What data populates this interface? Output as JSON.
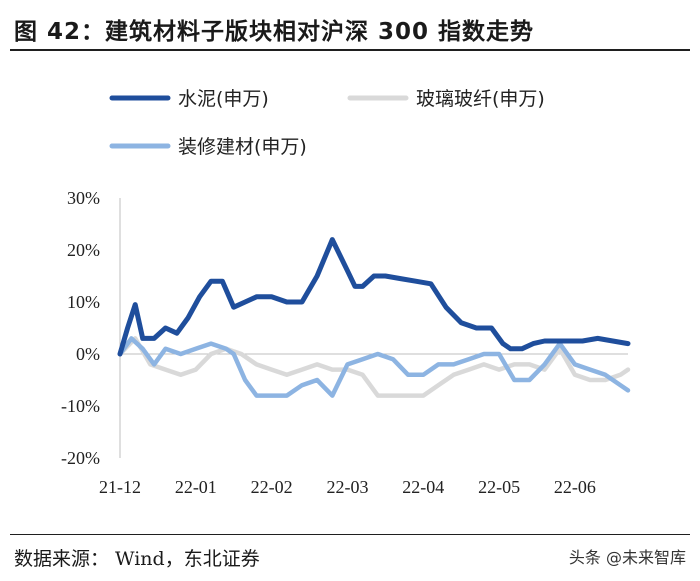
{
  "title": "图 42：建筑材料子版块相对沪深 300 指数走势",
  "source": "数据来源：  Wind，东北证券",
  "watermark": "头条 @未来智库",
  "chart_data": {
    "type": "line",
    "title": "建筑材料子版块相对沪深 300 指数走势",
    "xlabel": "",
    "ylabel": "",
    "ylim": [
      -20,
      30
    ],
    "yticks": [
      30,
      20,
      10,
      0,
      -10,
      -20
    ],
    "ytick_labels": [
      "30%",
      "20%",
      "10%",
      "0%",
      "-10%",
      "-20%"
    ],
    "x_range": [
      0,
      6.7
    ],
    "xticks": [
      0,
      1,
      2,
      3,
      4,
      5,
      6
    ],
    "xtick_labels": [
      "21-12",
      "22-01",
      "22-02",
      "22-03",
      "22-04",
      "22-05",
      "22-06"
    ],
    "grid": false,
    "legend_position": "top",
    "series": [
      {
        "name": "水泥(申万)",
        "color": "#1f4e9c",
        "x": [
          0,
          0.1,
          0.2,
          0.3,
          0.45,
          0.6,
          0.75,
          0.9,
          1.05,
          1.2,
          1.35,
          1.5,
          1.65,
          1.8,
          2.0,
          2.2,
          2.4,
          2.6,
          2.8,
          3.0,
          3.1,
          3.2,
          3.35,
          3.5,
          3.7,
          3.9,
          4.1,
          4.3,
          4.5,
          4.7,
          4.9,
          5.05,
          5.15,
          5.3,
          5.45,
          5.6,
          5.75,
          5.9,
          6.1,
          6.3,
          6.5,
          6.7
        ],
        "values": [
          0,
          5,
          9.5,
          3,
          3,
          5,
          4,
          7,
          11,
          14,
          14,
          9,
          10,
          11,
          11,
          10,
          10,
          15,
          22,
          16,
          13,
          13,
          15,
          15,
          14.5,
          14,
          13.5,
          9,
          6,
          5,
          5,
          2,
          1,
          1,
          2,
          2.5,
          2.5,
          2.5,
          2.5,
          3,
          2.5,
          2
        ]
      },
      {
        "name": "玻璃玻纤(申万)",
        "color": "#d9d9d9",
        "x": [
          0,
          0.2,
          0.4,
          0.6,
          0.8,
          1.0,
          1.2,
          1.4,
          1.6,
          1.8,
          2.0,
          2.2,
          2.4,
          2.6,
          2.8,
          3.0,
          3.2,
          3.4,
          3.6,
          3.8,
          4.0,
          4.2,
          4.4,
          4.6,
          4.8,
          5.0,
          5.2,
          5.4,
          5.6,
          5.8,
          6.0,
          6.2,
          6.4,
          6.6,
          6.7
        ],
        "values": [
          0,
          3,
          -2,
          -3,
          -4,
          -3,
          0,
          1,
          0,
          -2,
          -3,
          -4,
          -3,
          -2,
          -3,
          -3,
          -4,
          -8,
          -8,
          -8,
          -8,
          -6,
          -4,
          -3,
          -2,
          -3,
          -2,
          -2,
          -3,
          1,
          -4,
          -5,
          -5,
          -4,
          -3
        ]
      },
      {
        "name": "装修建材(申万)",
        "color": "#8db4e2",
        "x": [
          0,
          0.15,
          0.3,
          0.45,
          0.6,
          0.8,
          1.0,
          1.2,
          1.4,
          1.5,
          1.65,
          1.8,
          2.0,
          2.2,
          2.4,
          2.6,
          2.8,
          3.0,
          3.2,
          3.4,
          3.6,
          3.8,
          4.0,
          4.2,
          4.4,
          4.6,
          4.8,
          5.0,
          5.2,
          5.4,
          5.6,
          5.8,
          6.0,
          6.2,
          6.4,
          6.6,
          6.7
        ],
        "values": [
          0,
          3,
          1,
          -2,
          1,
          0,
          1,
          2,
          1,
          0,
          -5,
          -8,
          -8,
          -8,
          -6,
          -5,
          -8,
          -2,
          -1,
          0,
          -1,
          -4,
          -4,
          -2,
          -2,
          -1,
          0,
          0,
          -5,
          -5,
          -2,
          2,
          -2,
          -3,
          -4,
          -6,
          -7
        ]
      }
    ]
  }
}
